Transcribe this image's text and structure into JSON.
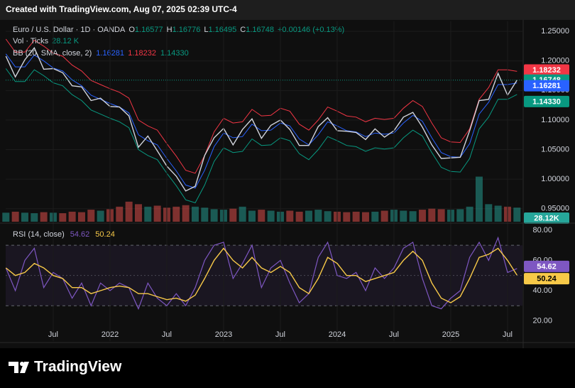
{
  "caption": "Created with TradingView.com, Aug 07, 2025 02:39 UTC-4",
  "brand": "TradingView",
  "chart_data": [
    {
      "type": "line",
      "title": "Euro / U.S. Dollar · 1D · OANDA",
      "ohlc": [
        {
          "name": "O",
          "value": 1.16577
        },
        {
          "name": "H",
          "value": 1.16776
        },
        {
          "name": "L",
          "value": 1.16495
        },
        {
          "name": "C",
          "value": 1.16748
        }
      ],
      "change": "+0.00146 (+0.13%)",
      "ylim": [
        0.928,
        1.267
      ],
      "yticks": [
        {
          "value": 1.25,
          "label": "1.25000"
        },
        {
          "value": 1.2,
          "label": "1.20000"
        },
        {
          "value": 1.15,
          "label": "1.15000"
        },
        {
          "value": 1.1,
          "label": "1.10000"
        },
        {
          "value": 1.05,
          "label": "1.05000"
        },
        {
          "value": 1.0,
          "label": "1.00000"
        },
        {
          "value": 0.95,
          "label": "0.95000"
        }
      ],
      "grid": true,
      "price": {
        "color": "#d1d4dc",
        "marker_color": "#089981",
        "values": [
          1.208,
          1.173,
          1.202,
          1.222,
          1.186,
          1.187,
          1.18,
          1.158,
          1.156,
          1.133,
          1.137,
          1.123,
          1.122,
          1.107,
          1.054,
          1.073,
          1.048,
          1.022,
          1.005,
          0.98,
          0.988,
          1.04,
          1.07,
          1.086,
          1.058,
          1.084,
          1.102,
          1.069,
          1.091,
          1.1,
          1.084,
          1.057,
          1.057,
          1.089,
          1.104,
          1.082,
          1.081,
          1.079,
          1.067,
          1.085,
          1.071,
          1.082,
          1.105,
          1.113,
          1.088,
          1.058,
          1.035,
          1.036,
          1.037,
          1.082,
          1.133,
          1.135,
          1.179,
          1.142,
          1.16748
        ]
      },
      "bb": {
        "name": "BB (20, SMA, close, 2)",
        "series": [
          {
            "color": "#2962ff",
            "last": 1.16281,
            "values": [
              1.212,
              1.19,
              1.19,
              1.21,
              1.2,
              1.188,
              1.183,
              1.168,
              1.158,
              1.142,
              1.135,
              1.128,
              1.122,
              1.112,
              1.075,
              1.065,
              1.058,
              1.035,
              1.014,
              0.99,
              0.985,
              1.015,
              1.055,
              1.078,
              1.07,
              1.072,
              1.093,
              1.082,
              1.083,
              1.095,
              1.09,
              1.068,
              1.058,
              1.075,
              1.097,
              1.09,
              1.082,
              1.08,
              1.072,
              1.078,
              1.076,
              1.078,
              1.095,
              1.108,
              1.098,
              1.07,
              1.045,
              1.038,
              1.037,
              1.06,
              1.11,
              1.13,
              1.16,
              1.16,
              1.16281
            ]
          },
          {
            "color": "#f23645",
            "last": 1.18232,
            "values": [
              1.237,
              1.215,
              1.215,
              1.235,
              1.225,
              1.213,
              1.208,
              1.193,
              1.183,
              1.167,
              1.16,
              1.153,
              1.147,
              1.137,
              1.1,
              1.09,
              1.083,
              1.06,
              1.039,
              1.015,
              1.01,
              1.04,
              1.08,
              1.103,
              1.095,
              1.097,
              1.118,
              1.107,
              1.108,
              1.12,
              1.115,
              1.093,
              1.083,
              1.1,
              1.122,
              1.115,
              1.107,
              1.105,
              1.097,
              1.103,
              1.101,
              1.103,
              1.12,
              1.133,
              1.123,
              1.095,
              1.07,
              1.063,
              1.062,
              1.085,
              1.135,
              1.155,
              1.185,
              1.185,
              1.18232
            ]
          },
          {
            "color": "#089981",
            "last": {
              "value": 1.1433,
              "label": "1.14330"
            },
            "values": [
              1.187,
              1.165,
              1.165,
              1.185,
              1.175,
              1.163,
              1.158,
              1.143,
              1.133,
              1.117,
              1.11,
              1.103,
              1.097,
              1.087,
              1.05,
              1.04,
              1.033,
              1.01,
              0.989,
              0.965,
              0.96,
              0.99,
              1.03,
              1.053,
              1.045,
              1.047,
              1.068,
              1.057,
              1.058,
              1.07,
              1.065,
              1.043,
              1.033,
              1.05,
              1.072,
              1.065,
              1.057,
              1.055,
              1.047,
              1.053,
              1.051,
              1.053,
              1.07,
              1.083,
              1.073,
              1.045,
              1.02,
              1.013,
              1.012,
              1.035,
              1.085,
              1.105,
              1.135,
              1.135,
              1.1433
            ]
          }
        ]
      },
      "volume": {
        "name": "Vol · Ticks",
        "last": {
          "value": 28.12,
          "label": "28.12 K"
        },
        "axis_label": "28.12K",
        "color": "#26a69a",
        "color_down": "#ef5350",
        "y2lim": [
          0,
          400
        ],
        "values": [
          18,
          20,
          18,
          17,
          19,
          18,
          17,
          20,
          19,
          24,
          22,
          25,
          30,
          40,
          35,
          30,
          32,
          28,
          30,
          33,
          30,
          28,
          25,
          24,
          26,
          30,
          22,
          24,
          22,
          20,
          22,
          20,
          22,
          24,
          21,
          20,
          19,
          20,
          19,
          20,
          22,
          24,
          22,
          21,
          24,
          26,
          25,
          24,
          25,
          30,
          90,
          35,
          32,
          30,
          28.12
        ]
      }
    },
    {
      "type": "line",
      "title": "RSI (14, close)",
      "categories": [
        null,
        null,
        null,
        null,
        null,
        "Jul",
        null,
        null,
        null,
        null,
        null,
        "2022",
        null,
        null,
        null,
        null,
        null,
        "Jul",
        null,
        null,
        null,
        null,
        null,
        "2023",
        null,
        null,
        null,
        null,
        null,
        "Jul",
        null,
        null,
        null,
        null,
        null,
        "2024",
        null,
        null,
        null,
        null,
        null,
        "Jul",
        null,
        null,
        null,
        null,
        null,
        "2025",
        null,
        null,
        null,
        null,
        null,
        "Jul",
        null
      ],
      "ylim": [
        6.6,
        83.7
      ],
      "yticks": [
        {
          "value": 80,
          "label": "80.00"
        },
        {
          "value": 60,
          "label": "60.00"
        },
        {
          "value": 40,
          "label": "40.00"
        },
        {
          "value": 20,
          "label": "20.00"
        }
      ],
      "bands": [
        30,
        50,
        70
      ],
      "series": [
        {
          "color": "#7e57c2",
          "last": 54.62,
          "values": [
            55,
            40,
            60,
            68,
            42,
            52,
            48,
            35,
            45,
            30,
            45,
            40,
            45,
            42,
            28,
            45,
            35,
            30,
            38,
            30,
            42,
            60,
            70,
            72,
            48,
            58,
            70,
            42,
            55,
            60,
            45,
            32,
            38,
            62,
            72,
            50,
            48,
            52,
            40,
            55,
            48,
            55,
            68,
            72,
            48,
            30,
            28,
            35,
            40,
            62,
            72,
            60,
            75,
            52,
            54.62
          ]
        },
        {
          "color": "#f7c948",
          "last": 50.24,
          "values": [
            55,
            50,
            52,
            58,
            55,
            50,
            48,
            42,
            42,
            38,
            40,
            42,
            43,
            42,
            38,
            38,
            36,
            34,
            35,
            33,
            37,
            48,
            60,
            68,
            60,
            55,
            62,
            55,
            52,
            56,
            52,
            42,
            38,
            48,
            62,
            58,
            50,
            50,
            46,
            48,
            50,
            52,
            60,
            66,
            60,
            45,
            35,
            32,
            36,
            48,
            62,
            64,
            68,
            60,
            50.24
          ]
        }
      ]
    }
  ]
}
